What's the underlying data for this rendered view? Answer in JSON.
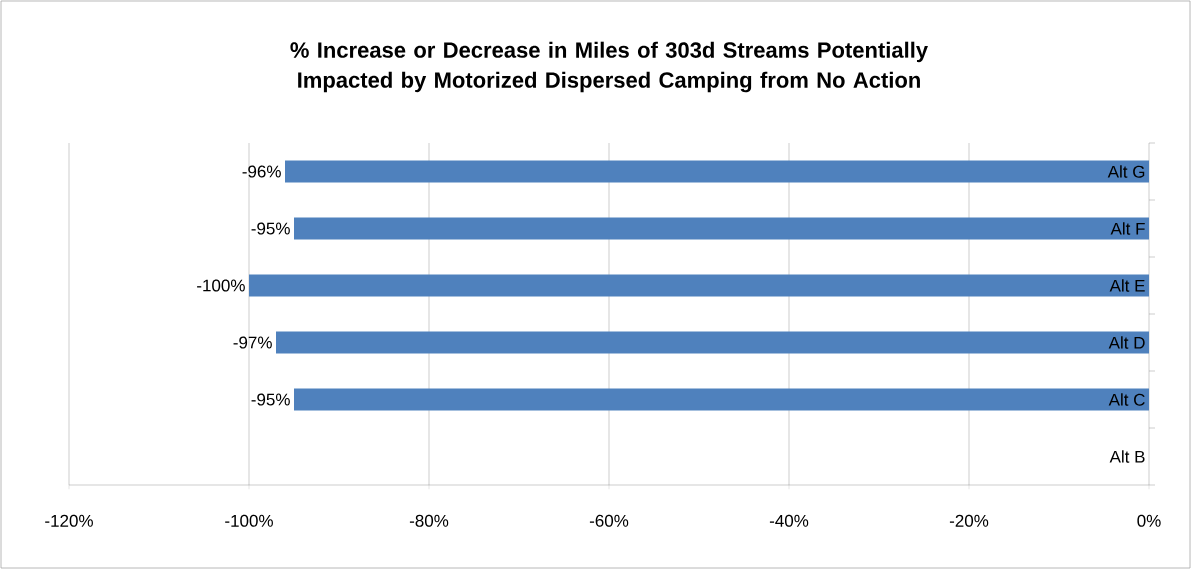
{
  "chart_data": {
    "type": "bar",
    "orientation": "horizontal",
    "title": "% Increase or Decrease in Miles of 303d Streams Potentially Impacted by Motorized Dispersed Camping from No Action",
    "categories": [
      "Alt G",
      "Alt F",
      "Alt E",
      "Alt D",
      "Alt C",
      "Alt B"
    ],
    "values": [
      -96,
      -95,
      -100,
      -97,
      -95,
      0
    ],
    "value_labels": [
      "-96%",
      "-95%",
      "-100%",
      "-97%",
      "-95%",
      null
    ],
    "color": "#4f81bd",
    "xlim": [
      -120,
      0
    ],
    "xticks": [
      {
        "value": -120,
        "label": "-120%"
      },
      {
        "value": -100,
        "label": "-100%"
      },
      {
        "value": -80,
        "label": "-80%"
      },
      {
        "value": -60,
        "label": "-60%"
      },
      {
        "value": -40,
        "label": "-40%"
      },
      {
        "value": -20,
        "label": "-20%"
      },
      {
        "value": 0,
        "label": "0%"
      }
    ],
    "grid": "x"
  }
}
